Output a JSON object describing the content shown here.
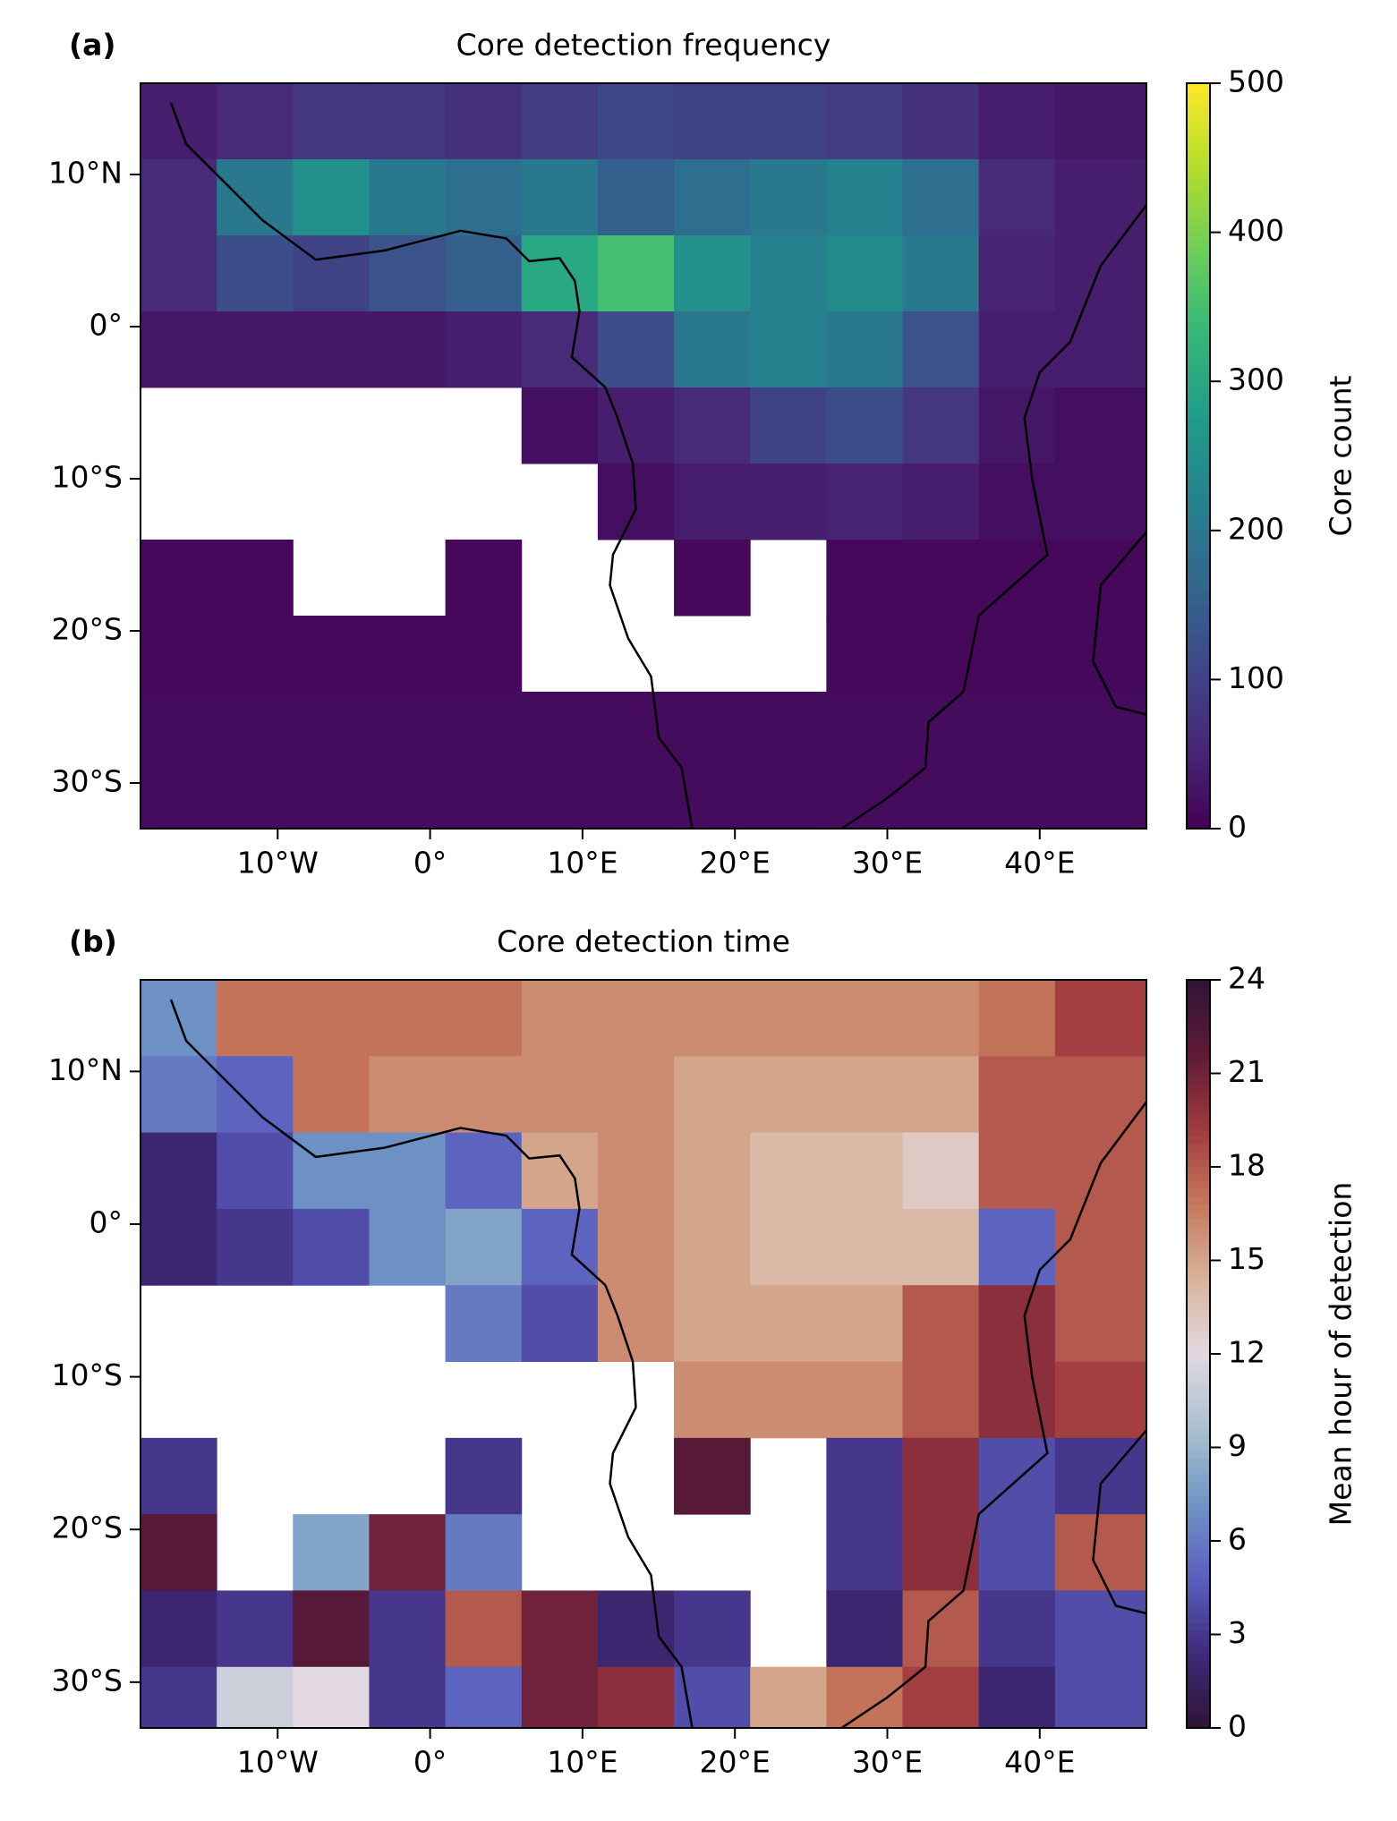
{
  "chart_data": [
    {
      "type": "heatmap",
      "panel_label": "(a)",
      "title": "Core detection frequency",
      "colorbar_label": "Core count",
      "colormap": "viridis",
      "xlim": [
        -19,
        47
      ],
      "ylim": [
        -33,
        16
      ],
      "xticks": [
        {
          "value": -10,
          "label": "10°W"
        },
        {
          "value": 0,
          "label": "0°"
        },
        {
          "value": 10,
          "label": "10°E"
        },
        {
          "value": 20,
          "label": "20°E"
        },
        {
          "value": 30,
          "label": "30°E"
        },
        {
          "value": 40,
          "label": "40°E"
        }
      ],
      "yticks": [
        {
          "value": 10,
          "label": "10°N"
        },
        {
          "value": 0,
          "label": "0°"
        },
        {
          "value": -10,
          "label": "10°S"
        },
        {
          "value": -20,
          "label": "20°S"
        },
        {
          "value": -30,
          "label": "30°S"
        }
      ],
      "clim": [
        0,
        500
      ],
      "cticks": [
        0,
        100,
        200,
        300,
        400,
        500
      ],
      "x_bins": [
        -19,
        -14,
        -9,
        -4,
        1,
        6,
        11,
        16,
        21,
        26,
        31,
        36,
        41,
        47
      ],
      "y_bins": [
        16,
        11,
        6,
        1,
        -4,
        -9,
        -14,
        -19,
        -24,
        -29,
        -33
      ],
      "values": [
        [
          40,
          60,
          80,
          80,
          70,
          90,
          110,
          100,
          100,
          90,
          70,
          40,
          30
        ],
        [
          60,
          200,
          250,
          200,
          180,
          200,
          150,
          180,
          200,
          220,
          180,
          60,
          40
        ],
        [
          60,
          120,
          100,
          130,
          150,
          300,
          350,
          250,
          220,
          240,
          200,
          50,
          40
        ],
        [
          30,
          30,
          30,
          30,
          40,
          60,
          120,
          200,
          220,
          200,
          130,
          40,
          40
        ],
        [
          null,
          null,
          null,
          null,
          null,
          20,
          40,
          60,
          100,
          120,
          80,
          30,
          20
        ],
        [
          null,
          null,
          null,
          null,
          null,
          null,
          20,
          40,
          40,
          50,
          40,
          20,
          20
        ],
        [
          10,
          10,
          null,
          null,
          10,
          null,
          null,
          10,
          null,
          10,
          10,
          10,
          10
        ],
        [
          10,
          10,
          10,
          10,
          10,
          null,
          null,
          null,
          null,
          10,
          10,
          10,
          10
        ],
        [
          15,
          15,
          15,
          15,
          15,
          15,
          15,
          15,
          15,
          15,
          15,
          15,
          15
        ],
        [
          15,
          15,
          15,
          15,
          15,
          15,
          15,
          15,
          15,
          15,
          15,
          15,
          15
        ]
      ]
    },
    {
      "type": "heatmap",
      "panel_label": "(b)",
      "title": "Core detection time",
      "colorbar_label": "Mean hour of detection",
      "colormap": "twilight_shifted",
      "xlim": [
        -19,
        47
      ],
      "ylim": [
        -33,
        16
      ],
      "xticks": [
        {
          "value": -10,
          "label": "10°W"
        },
        {
          "value": 0,
          "label": "0°"
        },
        {
          "value": 10,
          "label": "10°E"
        },
        {
          "value": 20,
          "label": "20°E"
        },
        {
          "value": 30,
          "label": "30°E"
        },
        {
          "value": 40,
          "label": "40°E"
        }
      ],
      "yticks": [
        {
          "value": 10,
          "label": "10°N"
        },
        {
          "value": 0,
          "label": "0°"
        },
        {
          "value": -10,
          "label": "10°S"
        },
        {
          "value": -20,
          "label": "20°S"
        },
        {
          "value": -30,
          "label": "30°S"
        }
      ],
      "clim": [
        0,
        24
      ],
      "cticks": [
        0,
        3,
        6,
        9,
        12,
        15,
        18,
        21,
        24
      ],
      "x_bins": [
        -19,
        -14,
        -9,
        -4,
        1,
        6,
        11,
        16,
        21,
        26,
        31,
        36,
        41,
        47
      ],
      "y_bins": [
        16,
        11,
        6,
        1,
        -4,
        -9,
        -14,
        -19,
        -24,
        -29,
        -33
      ],
      "values": [
        [
          7,
          17,
          17,
          17,
          17,
          16,
          16,
          16,
          16,
          16,
          16,
          17,
          19
        ],
        [
          6,
          5,
          17,
          16,
          16,
          16,
          16,
          15,
          15,
          15,
          15,
          18,
          18
        ],
        [
          2,
          4,
          7,
          7,
          5,
          15,
          16,
          15,
          14,
          14,
          13,
          18,
          18
        ],
        [
          2,
          3,
          4,
          7,
          8,
          5,
          16,
          15,
          14,
          14,
          14,
          5,
          18
        ],
        [
          null,
          null,
          null,
          null,
          6,
          4,
          16,
          15,
          15,
          15,
          18,
          20,
          18
        ],
        [
          null,
          null,
          null,
          null,
          null,
          null,
          null,
          16,
          16,
          16,
          18,
          20,
          19
        ],
        [
          3,
          null,
          null,
          null,
          3,
          null,
          null,
          22,
          null,
          3,
          20,
          4,
          3
        ],
        [
          22,
          null,
          8,
          21,
          6,
          null,
          null,
          null,
          null,
          3,
          20,
          4,
          18
        ],
        [
          2,
          3,
          22,
          3,
          18,
          21,
          2,
          3,
          null,
          2,
          18,
          3,
          4
        ],
        [
          3,
          11,
          12,
          3,
          5,
          21,
          20,
          4,
          15,
          17,
          19,
          2,
          4
        ]
      ]
    }
  ]
}
